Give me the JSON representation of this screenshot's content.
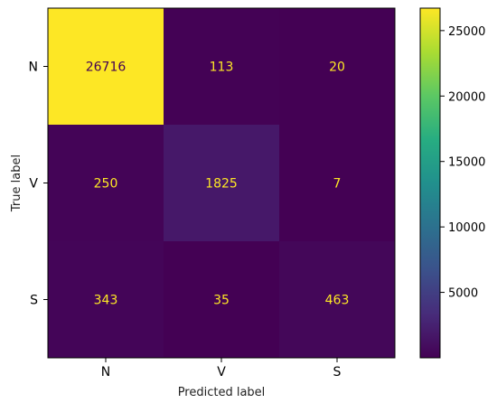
{
  "chart_data": {
    "type": "heatmap",
    "title": "",
    "xlabel": "Predicted label",
    "ylabel": "True label",
    "x_categories": [
      "N",
      "V",
      "S"
    ],
    "y_categories": [
      "N",
      "V",
      "S"
    ],
    "matrix": [
      [
        26716,
        113,
        20
      ],
      [
        250,
        1825,
        7
      ],
      [
        343,
        35,
        463
      ]
    ],
    "colormap": "viridis",
    "colorbar": {
      "range": [
        0,
        26716
      ],
      "ticks": [
        5000,
        10000,
        15000,
        20000,
        25000
      ],
      "tick_labels": [
        "5000",
        "10000",
        "15000",
        "20000",
        "25000"
      ]
    },
    "grid": false
  }
}
